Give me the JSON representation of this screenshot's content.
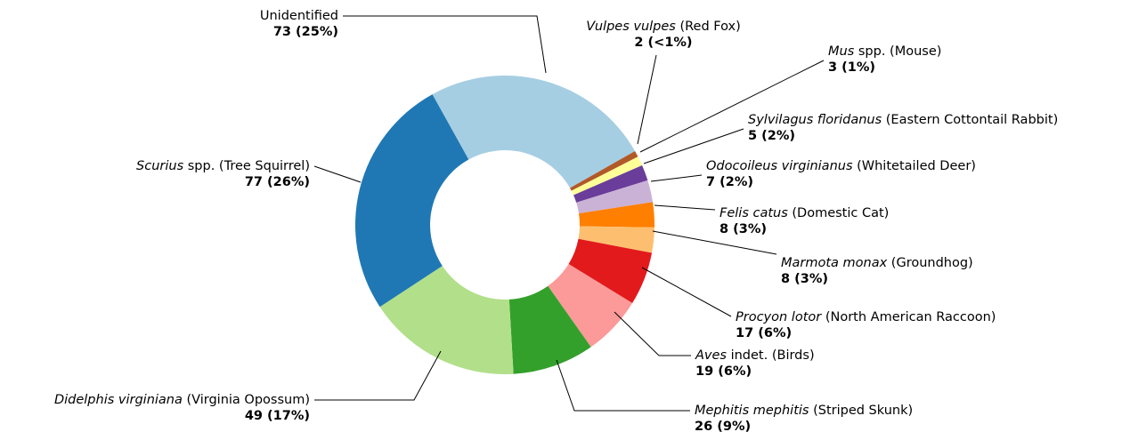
{
  "chart_data": {
    "type": "pie",
    "categories": [
      {
        "text": "Unidentified"
      },
      {
        "italic": "Vulpes vulpes",
        "text": " (Red Fox)"
      },
      {
        "italic": "Mus",
        "text": " spp. (Mouse)"
      },
      {
        "italic": "Sylvilagus floridanus",
        "text": " (Eastern Cottontail Rabbit)"
      },
      {
        "italic": "Odocoileus virginianus",
        "text": " (Whitetailed Deer)"
      },
      {
        "italic": "Felis catus",
        "text": " (Domestic Cat)"
      },
      {
        "italic": "Marmota monax",
        "text": " (Groundhog)"
      },
      {
        "italic": "Procyon lotor",
        "text": " (North American Raccoon)"
      },
      {
        "italic": "Aves",
        "text": " indet. (Birds)"
      },
      {
        "italic": "Mephitis mephitis",
        "text": " (Striped Skunk)"
      },
      {
        "italic": "Didelphis virginiana",
        "text": " (Virginia Opossum)"
      },
      {
        "italic": "Scurius",
        "text": " spp. (Tree Squirrel)"
      }
    ],
    "values": [
      73,
      2,
      3,
      5,
      7,
      8,
      8,
      17,
      19,
      26,
      49,
      77
    ],
    "value_labels": [
      "73 (25%)",
      "2 (<1%)",
      "3 (1%)",
      "5 (2%)",
      "7 (2%)",
      "8 (3%)",
      "8 (3%)",
      "17 (6%)",
      "19 (6%)",
      "26 (9%)",
      "49 (17%)",
      "77 (26%)"
    ],
    "colors": [
      "#a6cee3",
      "#b15928",
      "#ffff99",
      "#6a3d9a",
      "#cab2d6",
      "#ff7f00",
      "#fdbf6f",
      "#e31a1c",
      "#fb9a99",
      "#33a02c",
      "#b2df8a",
      "#1f78b4"
    ],
    "donut": true
  }
}
